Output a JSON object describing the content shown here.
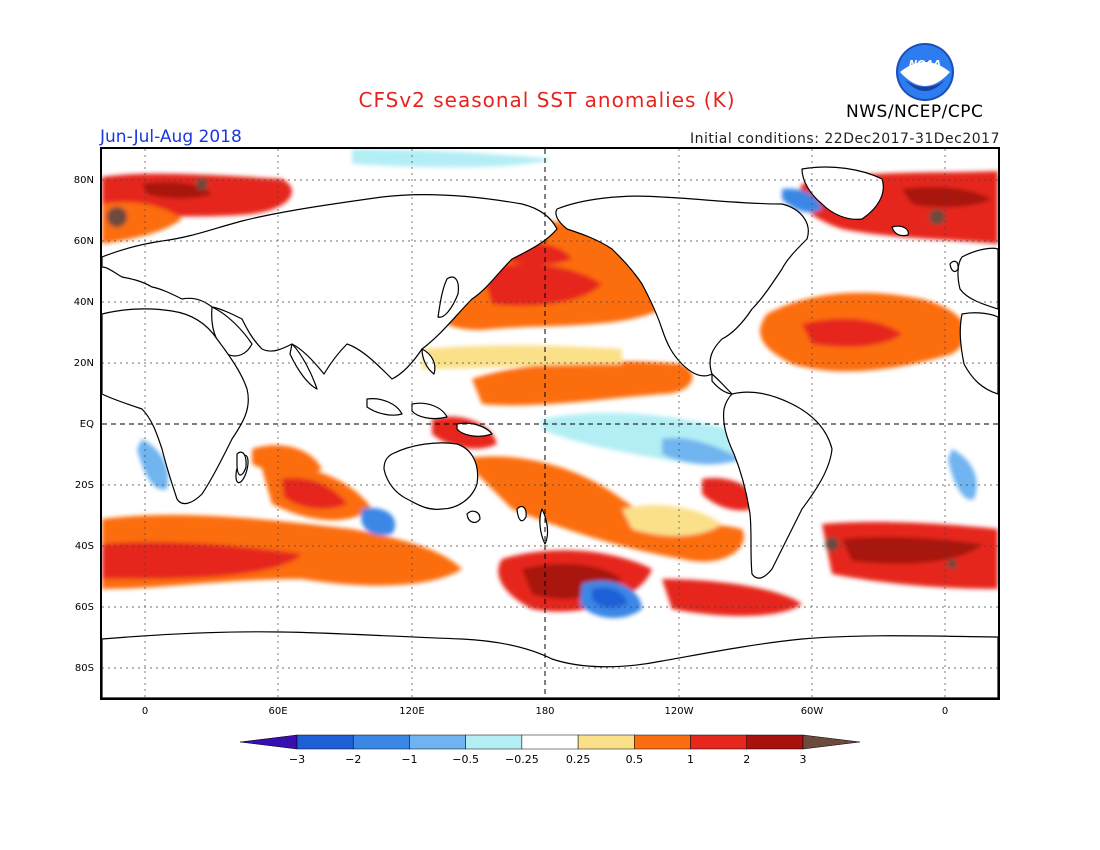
{
  "title": "CFSv2 seasonal SST anomalies (K)",
  "period": "Jun-Jul-Aug 2018",
  "initial_conditions": "Initial conditions: 22Dec2017-31Dec2017",
  "agency": "NWS/NCEP/CPC",
  "logo_text": "NOAA",
  "lat_labels": [
    "80N",
    "60N",
    "40N",
    "20N",
    "EQ",
    "20S",
    "40S",
    "60S",
    "80S"
  ],
  "lon_labels": [
    "0",
    "60E",
    "120E",
    "180",
    "120W",
    "60W",
    "0"
  ],
  "colorbar": {
    "labels": [
      "-3",
      "-2",
      "-1",
      "-0.5",
      "-0.25",
      "0.25",
      "0.5",
      "1",
      "2",
      "3"
    ],
    "colors": [
      "#3a0fb0",
      "#1f5fd6",
      "#3b87e6",
      "#6fb4f0",
      "#b4eef5",
      "#ffffff",
      "#fbe08a",
      "#fc6d11",
      "#e6281c",
      "#a8120c",
      "#6e4a3e"
    ]
  },
  "anomaly_colors": {
    "strong_warm": "#a8120c",
    "warm": "#e6281c",
    "moderate_warm": "#fc6d11",
    "weak_warm": "#fbe08a",
    "weak_cool": "#b4eef5",
    "moderate_cool": "#6fb4f0",
    "cool": "#3b87e6",
    "extreme_warm": "#6e4a3e"
  }
}
